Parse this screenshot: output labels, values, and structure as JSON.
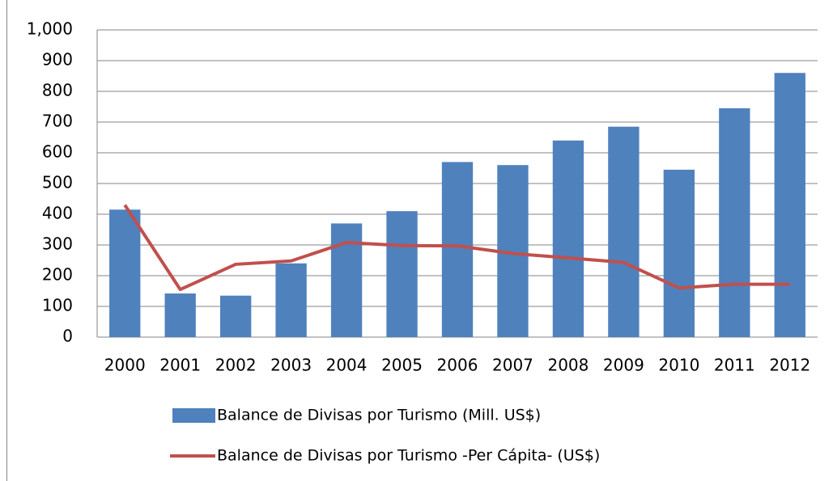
{
  "chart_data": {
    "type": "bar",
    "categories": [
      "2000",
      "2001",
      "2002",
      "2003",
      "2004",
      "2005",
      "2006",
      "2007",
      "2008",
      "2009",
      "2010",
      "2011",
      "2012"
    ],
    "series": [
      {
        "name": "Balance de Divisas por Turismo (Mill. US$)",
        "type": "bar",
        "color": "#4f81bd",
        "values": [
          415,
          142,
          135,
          240,
          370,
          410,
          570,
          560,
          640,
          685,
          545,
          745,
          860
        ]
      },
      {
        "name": "Balance de Divisas por Turismo -Per Cápita- (US$)",
        "type": "line",
        "color": "#c0504d",
        "values": [
          430,
          155,
          237,
          248,
          308,
          298,
          297,
          272,
          258,
          243,
          160,
          172,
          172
        ]
      }
    ],
    "ylim": [
      0,
      1000
    ],
    "yticks": [
      0,
      100,
      200,
      300,
      400,
      500,
      600,
      700,
      800,
      900,
      {
        "value": 1000,
        "label": "1,000"
      }
    ],
    "grid": true
  }
}
